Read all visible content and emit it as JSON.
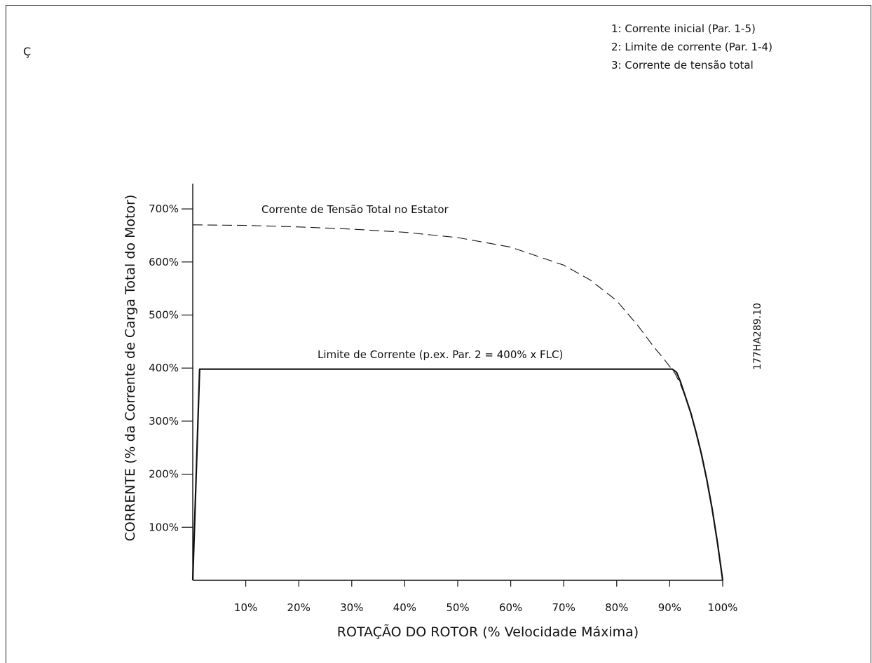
{
  "stray_char": "Ç",
  "legend": [
    "1: Corrente inicial (Par. 1-5)",
    "2: Limite de corrente (Par. 1-4)",
    "3: Corrente de tensão total"
  ],
  "figure_id": "177HA289.10",
  "chart_data": {
    "type": "line",
    "title": "",
    "xlabel": "ROTAÇÃO DO ROTOR (% Velocidade Máxima)",
    "ylabel": "CORRENTE (% da Corrente de Carga Total do Motor)",
    "xlim": [
      0,
      100
    ],
    "ylim": [
      0,
      750
    ],
    "x_ticks": [
      10,
      20,
      30,
      40,
      50,
      60,
      70,
      80,
      90,
      100
    ],
    "x_tick_labels": [
      "10%",
      "20%",
      "30%",
      "40%",
      "50%",
      "60%",
      "70%",
      "80%",
      "90%",
      "100%"
    ],
    "y_ticks": [
      100,
      200,
      300,
      400,
      500,
      600,
      700
    ],
    "y_tick_labels": [
      "100%",
      "200%",
      "300%",
      "400%",
      "500%",
      "600%",
      "700%"
    ],
    "grid": false,
    "series": [
      {
        "name": "Corrente de Tensão Total no Estator",
        "style": "dashed",
        "color": "#111111",
        "x": [
          0,
          10,
          20,
          30,
          40,
          50,
          60,
          70,
          75,
          80,
          84,
          87,
          89,
          91,
          92,
          93,
          94,
          95,
          96,
          97,
          98,
          99,
          100
        ],
        "y": [
          670,
          669,
          666,
          662,
          656,
          646,
          628,
          594,
          566,
          527,
          480,
          440,
          416,
          390,
          370,
          345,
          315,
          278,
          237,
          190,
          135,
          72,
          0
        ]
      },
      {
        "name": "Limite de Corrente (p.ex. Par. 2 = 400% x FLC)",
        "style": "solid",
        "color": "#111111",
        "x": [
          0,
          1.3,
          10,
          50,
          90.5,
          91.3,
          92,
          93,
          94,
          95,
          96,
          97,
          98,
          99,
          100
        ],
        "y": [
          0,
          398,
          398,
          398,
          398,
          392,
          375,
          345,
          315,
          278,
          237,
          190,
          135,
          72,
          0
        ]
      }
    ]
  }
}
